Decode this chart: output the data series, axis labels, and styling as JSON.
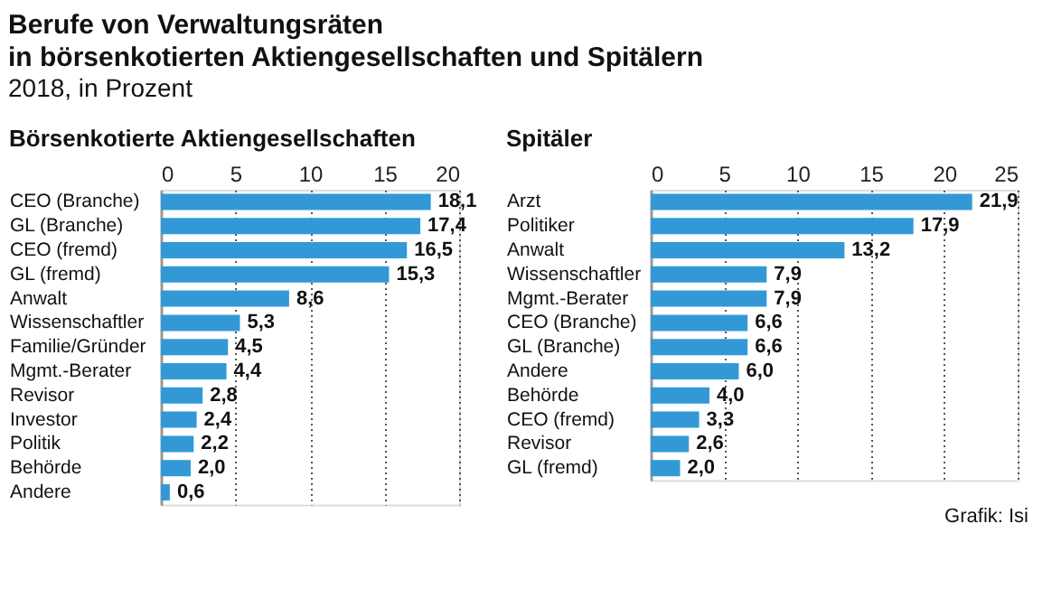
{
  "chart_data": [
    {
      "type": "other",
      "title": "Berufe von Verwaltungsräten\nin börsenkotierten Aktiengesellschaften und Spitälern",
      "subtitle": "2018, in Prozent"
    },
    {
      "type": "bar",
      "orientation": "horizontal",
      "title": "Börsenkotierte Aktiengesellschaften",
      "categories": [
        "CEO (Branche)",
        "GL (Branche)",
        "CEO (fremd)",
        "GL (fremd)",
        "Anwalt",
        "Wissenschaftler",
        "Familie/Gründer",
        "Mgmt.-Berater",
        "Revisor",
        "Investor",
        "Politik",
        "Behörde",
        "Andere"
      ],
      "values": [
        18.1,
        17.4,
        16.5,
        15.3,
        8.6,
        5.3,
        4.5,
        4.4,
        2.8,
        2.4,
        2.2,
        2.0,
        0.6
      ],
      "value_labels": [
        "18,1",
        "17,4",
        "16,5",
        "15,3",
        "8,6",
        "5,3",
        "4,5",
        "4,4",
        "2,8",
        "2,4",
        "2,2",
        "2,0",
        "0,6"
      ],
      "color": "#3399d6",
      "xlim": [
        0,
        20
      ],
      "xticks": [
        0,
        5,
        10,
        15,
        20
      ],
      "grid": "x"
    },
    {
      "type": "bar",
      "orientation": "horizontal",
      "title": "Spitäler",
      "categories": [
        "Arzt",
        "Politiker",
        "Anwalt",
        "Wissenschaftler",
        "Mgmt.-Berater",
        "CEO (Branche)",
        "GL (Branche)",
        "Andere",
        "Behörde",
        "CEO (fremd)",
        "Revisor",
        "GL (fremd)"
      ],
      "values": [
        21.9,
        17.9,
        13.2,
        7.9,
        7.9,
        6.6,
        6.6,
        6.0,
        4.0,
        3.3,
        2.6,
        2.0
      ],
      "value_labels": [
        "21,9",
        "17,9",
        "13,2",
        "7,9",
        "7,9",
        "6,6",
        "6,6",
        "6,0",
        "4,0",
        "3,3",
        "2,6",
        "2,0"
      ],
      "color": "#3399d6",
      "xlim": [
        0,
        25
      ],
      "xticks": [
        0,
        5,
        10,
        15,
        20,
        25
      ],
      "grid": "x",
      "annotations": [
        "Grafik: Isi"
      ]
    }
  ]
}
